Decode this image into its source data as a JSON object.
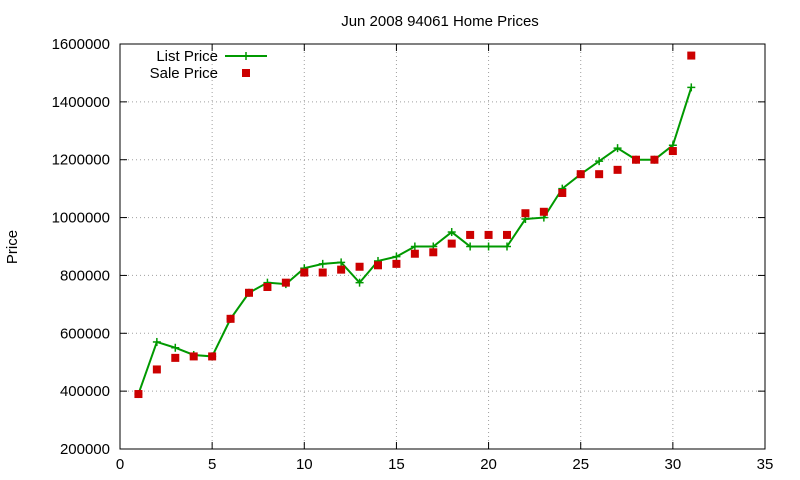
{
  "chart_data": {
    "type": "line",
    "title": "Jun 2008 94061 Home Prices",
    "xlabel": "",
    "ylabel": "Price",
    "xlim": [
      0,
      35
    ],
    "ylim": [
      200000,
      1600000
    ],
    "xticks": [
      0,
      5,
      10,
      15,
      20,
      25,
      30,
      35
    ],
    "yticks": [
      200000,
      400000,
      600000,
      800000,
      1000000,
      1200000,
      1400000,
      1600000
    ],
    "grid": true,
    "legend_position": "top-left",
    "series": [
      {
        "name": "List Price",
        "style": "line+cross",
        "color": "#009900",
        "x": [
          1,
          2,
          3,
          4,
          5,
          6,
          7,
          8,
          9,
          10,
          11,
          12,
          13,
          14,
          15,
          16,
          17,
          18,
          19,
          20,
          21,
          22,
          23,
          24,
          25,
          26,
          27,
          28,
          29,
          30,
          31
        ],
        "values": [
          390000,
          570000,
          550000,
          525000,
          520000,
          650000,
          740000,
          775000,
          770000,
          825000,
          840000,
          845000,
          775000,
          850000,
          865000,
          900000,
          900000,
          950000,
          900000,
          900000,
          900000,
          995000,
          1000000,
          1100000,
          1150000,
          1195000,
          1240000,
          1200000,
          1200000,
          1250000,
          1450000
        ]
      },
      {
        "name": "Sale Price",
        "style": "square",
        "color": "#cc0000",
        "x": [
          1,
          2,
          3,
          4,
          5,
          6,
          7,
          8,
          9,
          10,
          11,
          12,
          13,
          14,
          15,
          16,
          17,
          18,
          19,
          20,
          21,
          22,
          23,
          24,
          25,
          26,
          27,
          28,
          29,
          30,
          31
        ],
        "values": [
          390000,
          475000,
          515000,
          520000,
          520000,
          650000,
          740000,
          760000,
          775000,
          810000,
          810000,
          820000,
          830000,
          835000,
          840000,
          875000,
          880000,
          910000,
          940000,
          940000,
          940000,
          1015000,
          1020000,
          1085000,
          1150000,
          1150000,
          1165000,
          1200000,
          1200000,
          1230000,
          1560000
        ]
      }
    ]
  }
}
